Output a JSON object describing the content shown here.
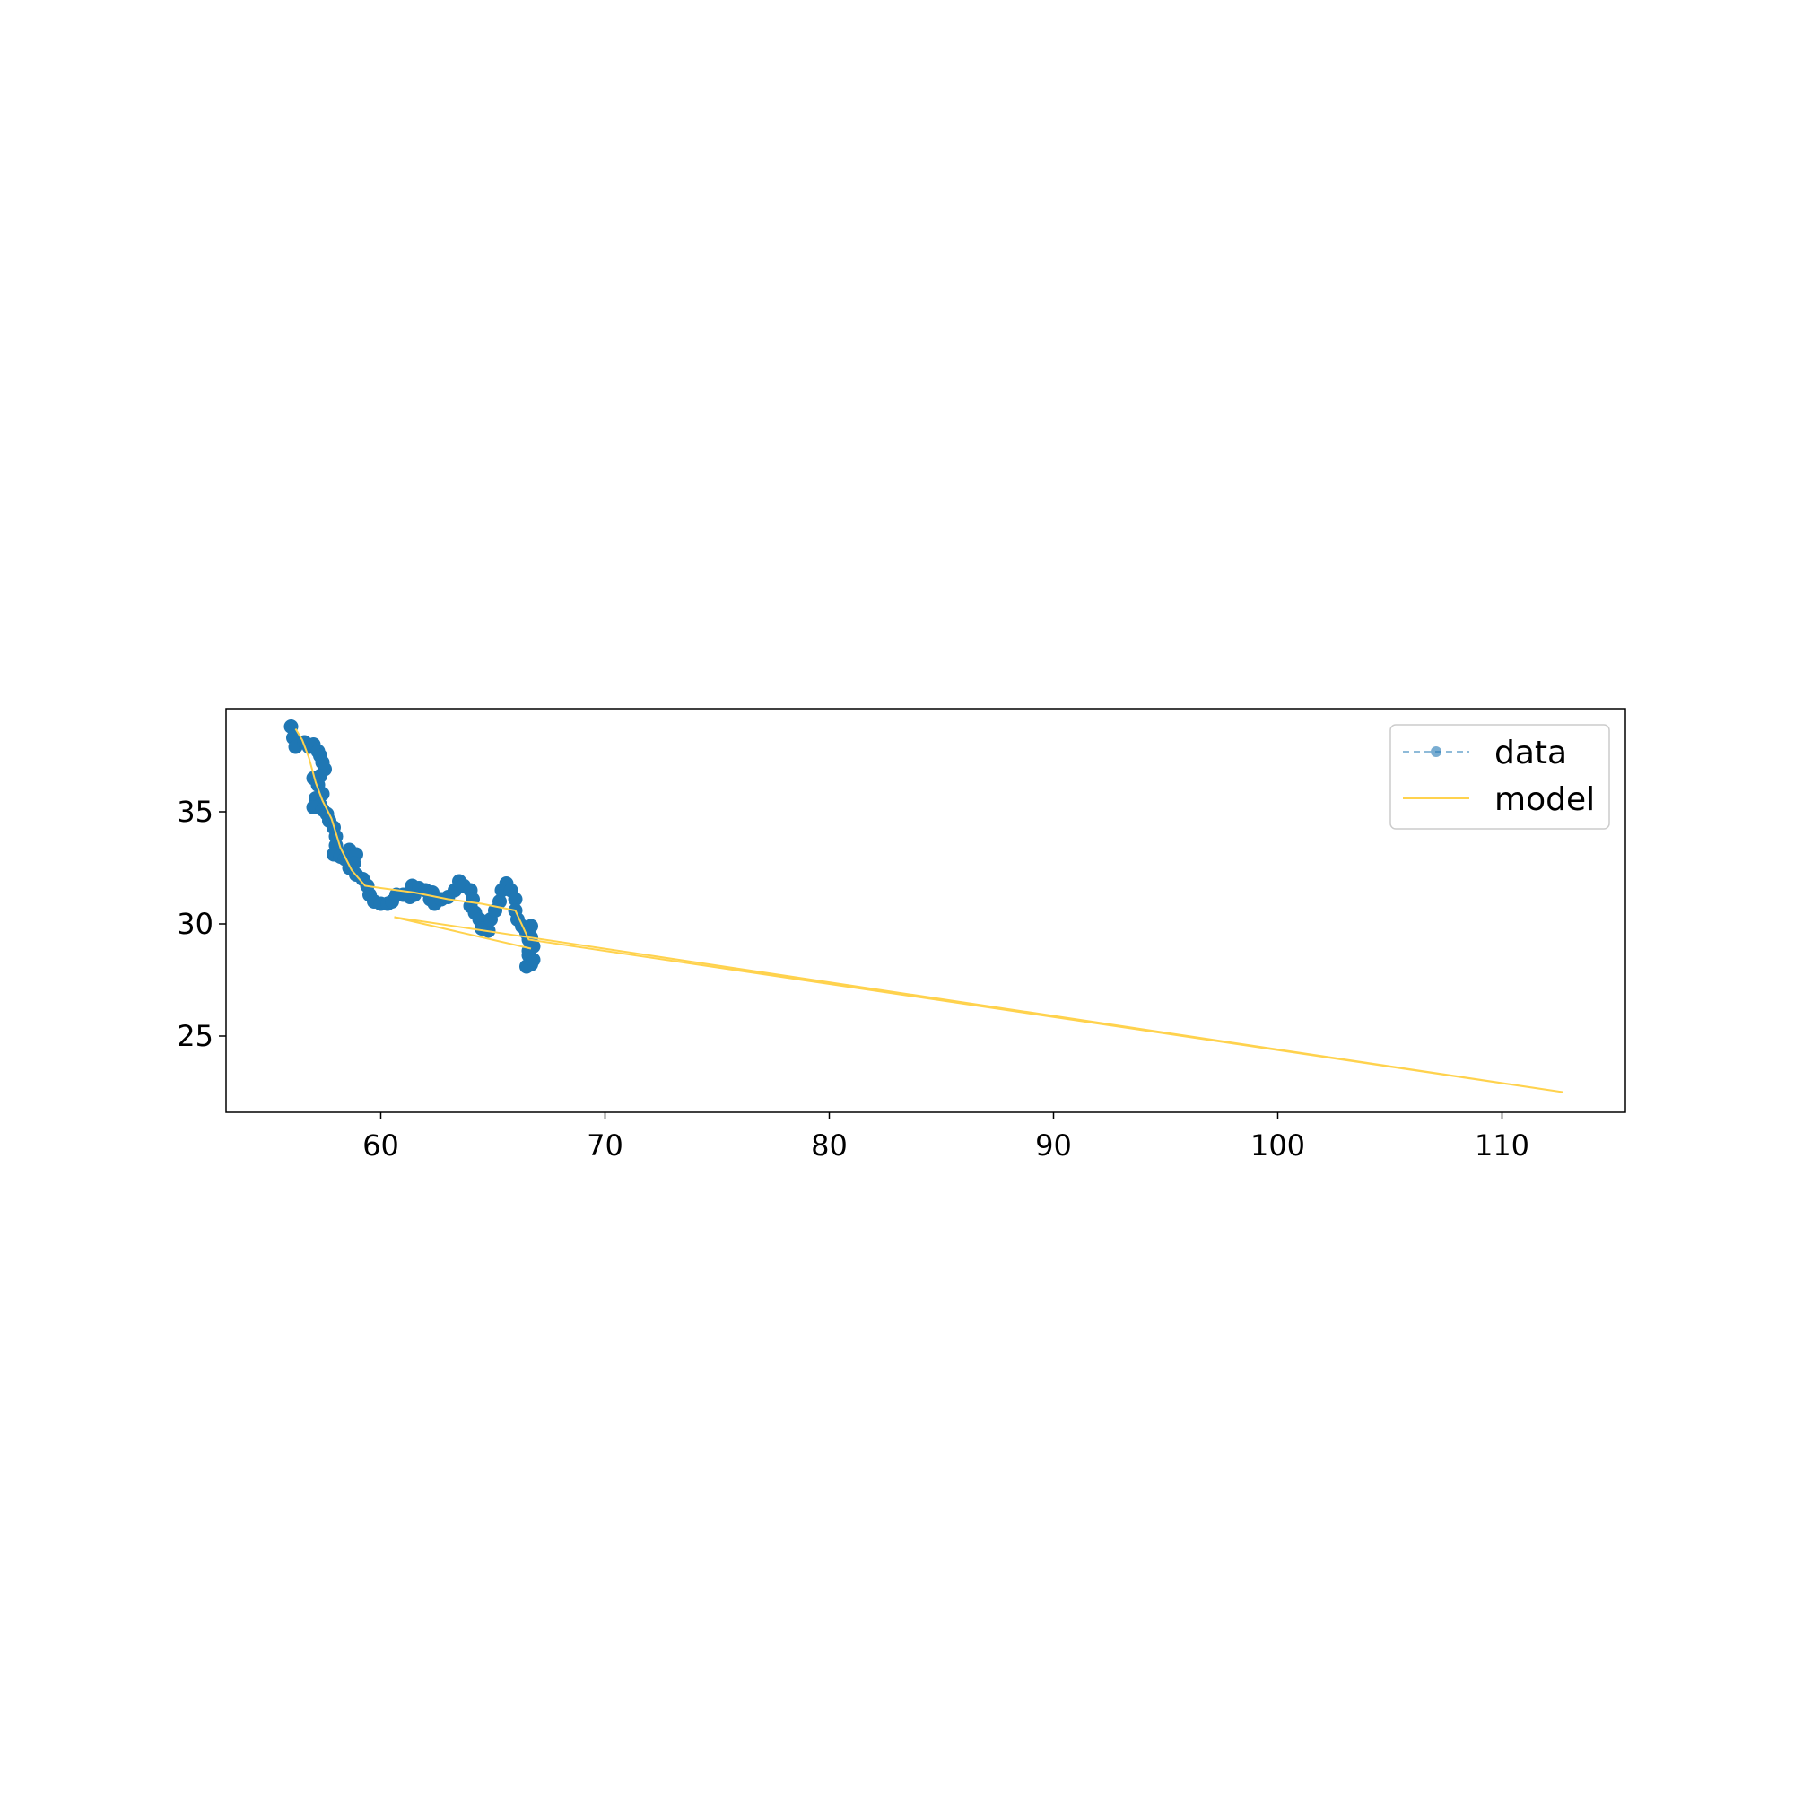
{
  "chart_data": {
    "type": "line",
    "xlim": [
      53.1,
      115.5
    ],
    "ylim": [
      21.6,
      39.6
    ],
    "xticks": [
      60,
      70,
      80,
      90,
      100,
      110
    ],
    "yticks": [
      25,
      30,
      35
    ],
    "grid": false,
    "legend_position": "top-right",
    "series": [
      {
        "name": "data",
        "style": "dashed line with circle markers",
        "color": "#1f77b4",
        "points": [
          [
            56.0,
            38.8
          ],
          [
            56.1,
            38.3
          ],
          [
            56.2,
            37.9
          ],
          [
            56.6,
            38.1
          ],
          [
            56.8,
            37.9
          ],
          [
            57.0,
            38.0
          ],
          [
            57.2,
            37.7
          ],
          [
            57.3,
            37.5
          ],
          [
            57.4,
            37.2
          ],
          [
            57.5,
            36.9
          ],
          [
            57.3,
            36.6
          ],
          [
            57.0,
            36.5
          ],
          [
            57.2,
            36.2
          ],
          [
            57.4,
            35.8
          ],
          [
            57.1,
            35.6
          ],
          [
            57.3,
            35.3
          ],
          [
            57.0,
            35.2
          ],
          [
            57.4,
            35.1
          ],
          [
            57.6,
            34.9
          ],
          [
            57.7,
            34.6
          ],
          [
            57.9,
            34.3
          ],
          [
            58.0,
            33.9
          ],
          [
            58.0,
            33.5
          ],
          [
            57.9,
            33.1
          ],
          [
            58.2,
            33.0
          ],
          [
            58.4,
            32.9
          ],
          [
            58.6,
            33.3
          ],
          [
            58.9,
            33.1
          ],
          [
            58.8,
            32.7
          ],
          [
            58.6,
            32.5
          ],
          [
            58.9,
            32.2
          ],
          [
            59.2,
            32.0
          ],
          [
            59.4,
            31.7
          ],
          [
            59.5,
            31.3
          ],
          [
            59.7,
            31.0
          ],
          [
            60.0,
            30.9
          ],
          [
            60.3,
            30.9
          ],
          [
            60.5,
            31.0
          ],
          [
            60.7,
            31.3
          ],
          [
            61.0,
            31.3
          ],
          [
            61.3,
            31.2
          ],
          [
            61.5,
            31.3
          ],
          [
            61.4,
            31.7
          ],
          [
            61.7,
            31.6
          ],
          [
            62.0,
            31.5
          ],
          [
            62.3,
            31.4
          ],
          [
            62.2,
            31.1
          ],
          [
            62.4,
            30.9
          ],
          [
            62.7,
            31.1
          ],
          [
            63.0,
            31.2
          ],
          [
            63.3,
            31.5
          ],
          [
            63.5,
            31.9
          ],
          [
            63.7,
            31.7
          ],
          [
            64.0,
            31.5
          ],
          [
            64.1,
            31.1
          ],
          [
            64.0,
            30.8
          ],
          [
            64.2,
            30.5
          ],
          [
            64.4,
            30.2
          ],
          [
            64.5,
            29.8
          ],
          [
            64.8,
            29.7
          ],
          [
            64.9,
            30.2
          ],
          [
            65.1,
            30.6
          ],
          [
            65.3,
            31.0
          ],
          [
            65.4,
            31.5
          ],
          [
            65.6,
            31.8
          ],
          [
            65.8,
            31.5
          ],
          [
            66.0,
            31.1
          ],
          [
            66.0,
            30.6
          ],
          [
            66.1,
            30.2
          ],
          [
            66.3,
            29.9
          ],
          [
            66.5,
            29.6
          ],
          [
            66.7,
            29.9
          ],
          [
            66.6,
            29.3
          ],
          [
            66.8,
            29.0
          ],
          [
            66.6,
            28.6
          ],
          [
            66.7,
            28.2
          ],
          [
            66.5,
            28.1
          ],
          [
            66.8,
            28.4
          ],
          [
            66.6,
            28.8
          ],
          [
            66.7,
            29.4
          ]
        ]
      },
      {
        "name": "model",
        "style": "solid line",
        "color": "#ffd24d",
        "points": [
          [
            56.2,
            38.7
          ],
          [
            56.5,
            38.2
          ],
          [
            56.8,
            37.4
          ],
          [
            57.1,
            36.3
          ],
          [
            57.4,
            35.5
          ],
          [
            57.8,
            34.7
          ],
          [
            58.2,
            33.4
          ],
          [
            58.7,
            32.4
          ],
          [
            59.3,
            31.7
          ],
          [
            60.0,
            31.6
          ],
          [
            61.5,
            31.4
          ],
          [
            63.0,
            31.1
          ],
          [
            64.5,
            30.9
          ],
          [
            66.0,
            30.6
          ],
          [
            66.6,
            29.3
          ],
          [
            112.7,
            22.5
          ],
          [
            60.6,
            30.3
          ],
          [
            66.7,
            28.9
          ]
        ]
      }
    ]
  }
}
